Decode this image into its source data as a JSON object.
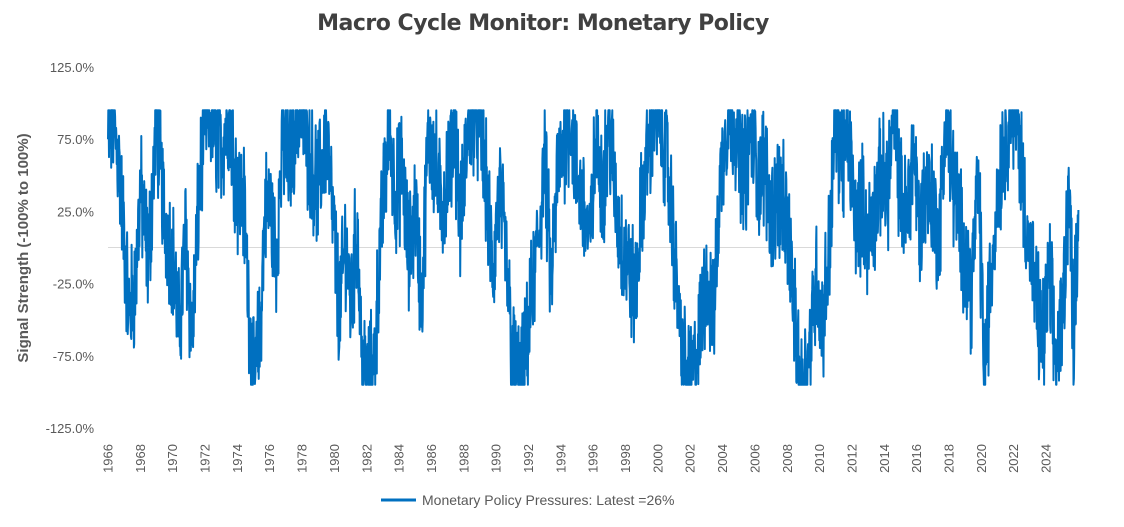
{
  "chart_data": {
    "type": "line",
    "title": "Macro Cycle Monitor: Monetary Policy",
    "ylabel": "Signal Strength (-100% to 100%)",
    "xlabel": "",
    "ylim": [
      -125,
      125
    ],
    "xlim": [
      1966,
      2026.1
    ],
    "yticks": [
      125,
      75,
      25,
      -25,
      -75,
      -125
    ],
    "ytick_labels": [
      "125.0%",
      "75.0%",
      "25.0%",
      "-25.0%",
      "-75.0%",
      "-125.0%"
    ],
    "xticks": [
      1966,
      1968,
      1970,
      1972,
      1974,
      1976,
      1978,
      1980,
      1982,
      1984,
      1986,
      1988,
      1990,
      1992,
      1994,
      1996,
      1998,
      2000,
      2002,
      2004,
      2006,
      2008,
      2010,
      2012,
      2014,
      2016,
      2018,
      2020,
      2022,
      2024
    ],
    "xtick_labels": [
      "1966",
      "1968",
      "1970",
      "1972",
      "1974",
      "1976",
      "1978",
      "1980",
      "1982",
      "1984",
      "1986",
      "1988",
      "1990",
      "1992",
      "1994",
      "1996",
      "1998",
      "2000",
      "2002",
      "2004",
      "2006",
      "2008",
      "2010",
      "2012",
      "2014",
      "2016",
      "2018",
      "2020",
      "2022",
      "2024"
    ],
    "legend_position": "bottom",
    "series": [
      {
        "name": "Monetary Policy Pressures: Latest =26%",
        "color": "#0070C0",
        "anchors": [
          [
            1966.0,
            70
          ],
          [
            1966.3,
            90
          ],
          [
            1966.7,
            55
          ],
          [
            1967.0,
            5
          ],
          [
            1967.3,
            -45
          ],
          [
            1967.7,
            -25
          ],
          [
            1968.0,
            40
          ],
          [
            1968.5,
            -10
          ],
          [
            1969.0,
            90
          ],
          [
            1969.5,
            20
          ],
          [
            1970.0,
            -5
          ],
          [
            1970.4,
            -60
          ],
          [
            1970.8,
            10
          ],
          [
            1971.2,
            -65
          ],
          [
            1971.6,
            30
          ],
          [
            1972.0,
            95
          ],
          [
            1972.5,
            85
          ],
          [
            1973.0,
            70
          ],
          [
            1973.5,
            95
          ],
          [
            1974.0,
            40
          ],
          [
            1974.4,
            30
          ],
          [
            1974.8,
            -60
          ],
          [
            1975.0,
            -95
          ],
          [
            1975.4,
            -60
          ],
          [
            1975.7,
            25
          ],
          [
            1976.0,
            30
          ],
          [
            1976.4,
            -5
          ],
          [
            1976.8,
            75
          ],
          [
            1977.2,
            55
          ],
          [
            1977.6,
            90
          ],
          [
            1978.0,
            95
          ],
          [
            1978.5,
            60
          ],
          [
            1979.0,
            40
          ],
          [
            1979.5,
            80
          ],
          [
            1980.0,
            5
          ],
          [
            1980.3,
            -45
          ],
          [
            1980.7,
            5
          ],
          [
            1981.0,
            -40
          ],
          [
            1981.4,
            15
          ],
          [
            1981.7,
            -80
          ],
          [
            1982.0,
            -95
          ],
          [
            1982.4,
            -85
          ],
          [
            1982.7,
            -30
          ],
          [
            1983.0,
            30
          ],
          [
            1983.4,
            85
          ],
          [
            1983.8,
            35
          ],
          [
            1984.2,
            55
          ],
          [
            1984.6,
            -10
          ],
          [
            1985.0,
            30
          ],
          [
            1985.4,
            -40
          ],
          [
            1985.8,
            80
          ],
          [
            1986.2,
            60
          ],
          [
            1986.6,
            25
          ],
          [
            1987.0,
            50
          ],
          [
            1987.4,
            90
          ],
          [
            1987.8,
            15
          ],
          [
            1988.2,
            75
          ],
          [
            1988.6,
            95
          ],
          [
            1989.0,
            85
          ],
          [
            1989.4,
            40
          ],
          [
            1989.8,
            -20
          ],
          [
            1990.2,
            40
          ],
          [
            1990.6,
            -5
          ],
          [
            1991.0,
            -75
          ],
          [
            1991.4,
            -95
          ],
          [
            1991.8,
            -80
          ],
          [
            1992.2,
            -35
          ],
          [
            1992.6,
            5
          ],
          [
            1993.0,
            60
          ],
          [
            1993.4,
            -25
          ],
          [
            1993.8,
            50
          ],
          [
            1994.2,
            75
          ],
          [
            1994.6,
            90
          ],
          [
            1995.0,
            45
          ],
          [
            1995.4,
            30
          ],
          [
            1995.8,
            0
          ],
          [
            1996.2,
            80
          ],
          [
            1996.6,
            40
          ],
          [
            1997.0,
            85
          ],
          [
            1997.4,
            30
          ],
          [
            1997.8,
            0
          ],
          [
            1998.2,
            -15
          ],
          [
            1998.6,
            -35
          ],
          [
            1999.0,
            30
          ],
          [
            1999.4,
            70
          ],
          [
            1999.8,
            95
          ],
          [
            2000.2,
            85
          ],
          [
            2000.6,
            55
          ],
          [
            2001.0,
            0
          ],
          [
            2001.4,
            -65
          ],
          [
            2001.8,
            -95
          ],
          [
            2002.2,
            -90
          ],
          [
            2002.6,
            -60
          ],
          [
            2003.0,
            -15
          ],
          [
            2003.4,
            -55
          ],
          [
            2003.8,
            35
          ],
          [
            2004.2,
            85
          ],
          [
            2004.6,
            95
          ],
          [
            2005.0,
            70
          ],
          [
            2005.4,
            50
          ],
          [
            2005.8,
            85
          ],
          [
            2006.2,
            45
          ],
          [
            2006.6,
            60
          ],
          [
            2007.0,
            20
          ],
          [
            2007.4,
            40
          ],
          [
            2007.8,
            25
          ],
          [
            2008.2,
            -5
          ],
          [
            2008.6,
            -75
          ],
          [
            2009.0,
            -95
          ],
          [
            2009.4,
            -70
          ],
          [
            2009.8,
            -20
          ],
          [
            2010.2,
            -55
          ],
          [
            2010.6,
            5
          ],
          [
            2011.0,
            90
          ],
          [
            2011.4,
            60
          ],
          [
            2011.8,
            75
          ],
          [
            2012.2,
            20
          ],
          [
            2012.6,
            30
          ],
          [
            2013.0,
            5
          ],
          [
            2013.4,
            25
          ],
          [
            2013.8,
            50
          ],
          [
            2014.2,
            40
          ],
          [
            2014.6,
            95
          ],
          [
            2015.0,
            35
          ],
          [
            2015.4,
            20
          ],
          [
            2015.8,
            70
          ],
          [
            2016.2,
            10
          ],
          [
            2016.6,
            45
          ],
          [
            2017.0,
            30
          ],
          [
            2017.4,
            5
          ],
          [
            2017.8,
            90
          ],
          [
            2018.2,
            50
          ],
          [
            2018.6,
            20
          ],
          [
            2019.0,
            -5
          ],
          [
            2019.4,
            -30
          ],
          [
            2019.8,
            50
          ],
          [
            2020.2,
            -85
          ],
          [
            2020.6,
            -20
          ],
          [
            2021.0,
            40
          ],
          [
            2021.4,
            70
          ],
          [
            2021.8,
            95
          ],
          [
            2022.2,
            95
          ],
          [
            2022.6,
            40
          ],
          [
            2023.0,
            -5
          ],
          [
            2023.4,
            -40
          ],
          [
            2023.8,
            -65
          ],
          [
            2024.2,
            -20
          ],
          [
            2024.6,
            -80
          ],
          [
            2025.0,
            -50
          ],
          [
            2025.4,
            45
          ],
          [
            2025.7,
            -55
          ],
          [
            2026.0,
            26
          ]
        ]
      }
    ]
  }
}
